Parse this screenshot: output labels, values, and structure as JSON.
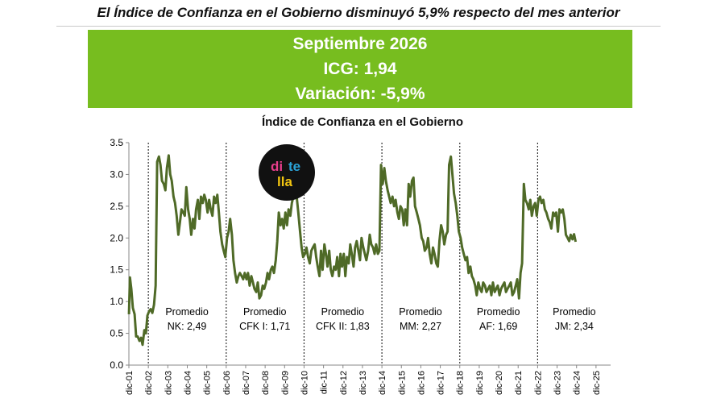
{
  "headline": "El Índice de Confianza en el Gobierno disminuyó 5,9% respecto del mes anterior",
  "banner": {
    "title": "Septiembre 2026",
    "icg": "ICG: 1,94",
    "variation": "Variación: -5,9%",
    "color": "#77bd1f"
  },
  "logo": {
    "part1": "di",
    "part2": "te",
    "part3": "lla"
  },
  "chart_data": {
    "type": "line",
    "title": "Índice de Confianza en el Gobierno",
    "xlabel": "",
    "ylabel": "",
    "ylim": [
      0,
      3.5
    ],
    "yticks": [
      "0.0",
      "0.5",
      "1.0",
      "1.5",
      "2.0",
      "2.5",
      "3.0",
      "3.5"
    ],
    "grid": false,
    "line_color": "#4f6a27",
    "x_labels": [
      "dic-01",
      "dic-02",
      "dic-03",
      "dic-04",
      "dic-05",
      "dic-06",
      "dic-07",
      "dic-08",
      "dic-09",
      "dic-10",
      "dic-11",
      "dic-12",
      "dic-13",
      "dic-14",
      "dic-15",
      "dic-16",
      "dic-17",
      "dic-18",
      "dic-19",
      "dic-20",
      "dic-21",
      "dic-22",
      "dic-23",
      "dic-24",
      "dic-25"
    ],
    "x_start": 2001.917,
    "x_end": 2026.667,
    "series": [
      {
        "points": [
          [
            2001.92,
            0.8
          ],
          [
            2001.97,
            1.38
          ],
          [
            2002.04,
            1.2
          ],
          [
            2002.12,
            0.9
          ],
          [
            2002.21,
            0.8
          ],
          [
            2002.29,
            0.45
          ],
          [
            2002.37,
            0.45
          ],
          [
            2002.46,
            0.38
          ],
          [
            2002.54,
            0.43
          ],
          [
            2002.62,
            0.32
          ],
          [
            2002.71,
            0.55
          ],
          [
            2002.79,
            0.5
          ],
          [
            2002.87,
            0.78
          ],
          [
            2002.96,
            0.85
          ],
          [
            2003.04,
            0.88
          ],
          [
            2003.12,
            0.82
          ],
          [
            2003.21,
            0.95
          ],
          [
            2003.29,
            1.25
          ],
          [
            2003.37,
            3.2
          ],
          [
            2003.46,
            3.28
          ],
          [
            2003.54,
            3.15
          ],
          [
            2003.62,
            2.9
          ],
          [
            2003.71,
            2.85
          ],
          [
            2003.79,
            2.75
          ],
          [
            2003.87,
            3.1
          ],
          [
            2003.96,
            3.3
          ],
          [
            2004.04,
            3.0
          ],
          [
            2004.12,
            2.9
          ],
          [
            2004.21,
            2.65
          ],
          [
            2004.29,
            2.55
          ],
          [
            2004.37,
            2.35
          ],
          [
            2004.46,
            2.05
          ],
          [
            2004.54,
            2.25
          ],
          [
            2004.62,
            2.45
          ],
          [
            2004.71,
            2.4
          ],
          [
            2004.79,
            2.35
          ],
          [
            2004.87,
            2.8
          ],
          [
            2004.96,
            2.45
          ],
          [
            2005.04,
            2.3
          ],
          [
            2005.12,
            2.05
          ],
          [
            2005.21,
            2.3
          ],
          [
            2005.29,
            2.15
          ],
          [
            2005.37,
            2.45
          ],
          [
            2005.46,
            2.6
          ],
          [
            2005.54,
            2.3
          ],
          [
            2005.62,
            2.65
          ],
          [
            2005.71,
            2.55
          ],
          [
            2005.79,
            2.68
          ],
          [
            2005.87,
            2.6
          ],
          [
            2005.96,
            2.4
          ],
          [
            2006.04,
            2.6
          ],
          [
            2006.12,
            2.45
          ],
          [
            2006.21,
            2.35
          ],
          [
            2006.29,
            2.65
          ],
          [
            2006.37,
            2.55
          ],
          [
            2006.46,
            2.68
          ],
          [
            2006.54,
            2.4
          ],
          [
            2006.62,
            2.1
          ],
          [
            2006.71,
            1.9
          ],
          [
            2006.79,
            1.8
          ],
          [
            2006.87,
            1.7
          ],
          [
            2006.96,
            2.0
          ],
          [
            2007.04,
            2.1
          ],
          [
            2007.12,
            2.3
          ],
          [
            2007.21,
            2.05
          ],
          [
            2007.29,
            1.65
          ],
          [
            2007.37,
            1.45
          ],
          [
            2007.46,
            1.3
          ],
          [
            2007.54,
            1.4
          ],
          [
            2007.62,
            1.45
          ],
          [
            2007.71,
            1.4
          ],
          [
            2007.79,
            1.35
          ],
          [
            2007.87,
            1.45
          ],
          [
            2007.96,
            1.35
          ],
          [
            2008.04,
            1.45
          ],
          [
            2008.12,
            1.25
          ],
          [
            2008.21,
            1.4
          ],
          [
            2008.29,
            1.3
          ],
          [
            2008.37,
            1.2
          ],
          [
            2008.46,
            1.15
          ],
          [
            2008.54,
            1.3
          ],
          [
            2008.62,
            1.05
          ],
          [
            2008.71,
            1.1
          ],
          [
            2008.79,
            1.25
          ],
          [
            2008.87,
            1.2
          ],
          [
            2008.96,
            1.3
          ],
          [
            2009.04,
            1.45
          ],
          [
            2009.12,
            1.35
          ],
          [
            2009.21,
            1.5
          ],
          [
            2009.29,
            1.55
          ],
          [
            2009.37,
            1.45
          ],
          [
            2009.46,
            1.65
          ],
          [
            2009.54,
            1.95
          ],
          [
            2009.62,
            2.4
          ],
          [
            2009.71,
            2.2
          ],
          [
            2009.79,
            2.3
          ],
          [
            2009.87,
            2.15
          ],
          [
            2009.96,
            2.4
          ],
          [
            2010.04,
            2.2
          ],
          [
            2010.12,
            2.45
          ],
          [
            2010.21,
            2.35
          ],
          [
            2010.29,
            2.55
          ],
          [
            2010.37,
            2.65
          ],
          [
            2010.46,
            2.75
          ],
          [
            2010.54,
            2.65
          ],
          [
            2010.62,
            2.4
          ],
          [
            2010.71,
            2.1
          ],
          [
            2010.79,
            1.85
          ],
          [
            2010.87,
            1.7
          ],
          [
            2010.96,
            1.75
          ],
          [
            2011.04,
            1.85
          ],
          [
            2011.12,
            1.7
          ],
          [
            2011.21,
            1.6
          ],
          [
            2011.29,
            1.8
          ],
          [
            2011.37,
            1.85
          ],
          [
            2011.46,
            1.9
          ],
          [
            2011.54,
            1.7
          ],
          [
            2011.62,
            1.55
          ],
          [
            2011.71,
            1.4
          ],
          [
            2011.79,
            1.8
          ],
          [
            2011.87,
            1.5
          ],
          [
            2011.96,
            1.9
          ],
          [
            2012.04,
            1.75
          ],
          [
            2012.12,
            1.55
          ],
          [
            2012.21,
            1.8
          ],
          [
            2012.29,
            1.5
          ],
          [
            2012.37,
            1.4
          ],
          [
            2012.46,
            1.55
          ],
          [
            2012.54,
            1.5
          ],
          [
            2012.62,
            1.7
          ],
          [
            2012.71,
            1.4
          ],
          [
            2012.79,
            1.75
          ],
          [
            2012.87,
            1.55
          ],
          [
            2012.96,
            1.75
          ],
          [
            2013.04,
            1.4
          ],
          [
            2013.12,
            1.7
          ],
          [
            2013.21,
            1.6
          ],
          [
            2013.29,
            1.9
          ],
          [
            2013.37,
            1.75
          ],
          [
            2013.46,
            1.55
          ],
          [
            2013.54,
            1.85
          ],
          [
            2013.62,
            1.95
          ],
          [
            2013.71,
            1.8
          ],
          [
            2013.79,
            1.65
          ],
          [
            2013.87,
            2.0
          ],
          [
            2013.96,
            1.85
          ],
          [
            2014.04,
            1.75
          ],
          [
            2014.12,
            1.65
          ],
          [
            2014.21,
            1.8
          ],
          [
            2014.29,
            2.05
          ],
          [
            2014.37,
            1.9
          ],
          [
            2014.46,
            1.85
          ],
          [
            2014.54,
            1.75
          ],
          [
            2014.62,
            1.9
          ],
          [
            2014.71,
            1.75
          ],
          [
            2014.79,
            1.8
          ],
          [
            2014.87,
            3.15
          ],
          [
            2014.96,
            2.85
          ],
          [
            2015.04,
            3.1
          ],
          [
            2015.12,
            2.9
          ],
          [
            2015.21,
            2.75
          ],
          [
            2015.29,
            2.65
          ],
          [
            2015.37,
            2.55
          ],
          [
            2015.46,
            2.65
          ],
          [
            2015.54,
            2.5
          ],
          [
            2015.62,
            2.6
          ],
          [
            2015.71,
            2.4
          ],
          [
            2015.79,
            2.3
          ],
          [
            2015.87,
            2.5
          ],
          [
            2015.96,
            2.45
          ],
          [
            2016.04,
            2.2
          ],
          [
            2016.12,
            2.45
          ],
          [
            2016.21,
            2.2
          ],
          [
            2016.29,
            2.85
          ],
          [
            2016.37,
            2.65
          ],
          [
            2016.46,
            2.9
          ],
          [
            2016.54,
            2.95
          ],
          [
            2016.62,
            2.5
          ],
          [
            2016.71,
            2.4
          ],
          [
            2016.79,
            2.3
          ],
          [
            2016.87,
            2.2
          ],
          [
            2016.96,
            2.0
          ],
          [
            2017.04,
            1.95
          ],
          [
            2017.12,
            1.8
          ],
          [
            2017.21,
            1.85
          ],
          [
            2017.29,
            2.0
          ],
          [
            2017.37,
            1.75
          ],
          [
            2017.46,
            1.6
          ],
          [
            2017.54,
            1.85
          ],
          [
            2017.62,
            1.75
          ],
          [
            2017.71,
            1.6
          ],
          [
            2017.79,
            1.55
          ],
          [
            2017.87,
            1.95
          ],
          [
            2017.96,
            2.2
          ],
          [
            2018.04,
            2.1
          ],
          [
            2018.12,
            1.9
          ],
          [
            2018.21,
            2.05
          ],
          [
            2018.29,
            2.1
          ],
          [
            2018.37,
            3.15
          ],
          [
            2018.46,
            3.28
          ],
          [
            2018.54,
            3.0
          ],
          [
            2018.62,
            2.7
          ],
          [
            2018.71,
            2.55
          ],
          [
            2018.79,
            2.35
          ],
          [
            2018.87,
            2.1
          ],
          [
            2018.96,
            2.0
          ],
          [
            2019.04,
            1.85
          ],
          [
            2019.12,
            1.75
          ],
          [
            2019.21,
            1.65
          ],
          [
            2019.29,
            1.7
          ],
          [
            2019.37,
            1.45
          ],
          [
            2019.46,
            1.55
          ],
          [
            2019.54,
            1.4
          ],
          [
            2019.62,
            1.35
          ],
          [
            2019.71,
            1.25
          ],
          [
            2019.79,
            1.1
          ],
          [
            2019.87,
            1.3
          ],
          [
            2019.96,
            1.2
          ],
          [
            2020.04,
            1.15
          ],
          [
            2020.12,
            1.3
          ],
          [
            2020.21,
            1.25
          ],
          [
            2020.29,
            1.15
          ],
          [
            2020.37,
            1.2
          ],
          [
            2020.46,
            1.25
          ],
          [
            2020.54,
            1.1
          ],
          [
            2020.62,
            1.3
          ],
          [
            2020.71,
            1.15
          ],
          [
            2020.79,
            1.2
          ],
          [
            2020.87,
            1.25
          ],
          [
            2020.96,
            1.1
          ],
          [
            2021.04,
            1.2
          ],
          [
            2021.12,
            1.25
          ],
          [
            2021.21,
            1.3
          ],
          [
            2021.29,
            1.15
          ],
          [
            2021.37,
            1.2
          ],
          [
            2021.46,
            1.25
          ],
          [
            2021.54,
            1.3
          ],
          [
            2021.62,
            1.1
          ],
          [
            2021.71,
            1.15
          ],
          [
            2021.79,
            1.25
          ],
          [
            2021.87,
            1.35
          ],
          [
            2021.96,
            1.05
          ],
          [
            2022.04,
            1.45
          ],
          [
            2022.12,
            1.6
          ],
          [
            2022.21,
            2.85
          ],
          [
            2022.29,
            2.6
          ],
          [
            2022.37,
            2.55
          ],
          [
            2022.46,
            2.45
          ],
          [
            2022.54,
            2.6
          ],
          [
            2022.62,
            2.35
          ],
          [
            2022.71,
            2.5
          ],
          [
            2022.79,
            2.55
          ],
          [
            2022.87,
            2.35
          ],
          [
            2022.96,
            2.6
          ],
          [
            2023.04,
            2.65
          ],
          [
            2023.12,
            2.55
          ],
          [
            2023.21,
            2.6
          ],
          [
            2023.29,
            2.45
          ],
          [
            2023.37,
            2.4
          ],
          [
            2023.46,
            2.3
          ],
          [
            2023.54,
            2.25
          ],
          [
            2023.62,
            2.15
          ],
          [
            2023.71,
            2.4
          ],
          [
            2023.79,
            2.35
          ],
          [
            2023.87,
            2.4
          ],
          [
            2023.96,
            2.1
          ],
          [
            2024.04,
            2.45
          ],
          [
            2024.12,
            2.4
          ],
          [
            2024.21,
            2.45
          ],
          [
            2024.29,
            2.3
          ],
          [
            2024.37,
            2.05
          ],
          [
            2024.46,
            2.0
          ],
          [
            2024.54,
            1.95
          ],
          [
            2024.62,
            2.05
          ],
          [
            2024.71,
            1.98
          ],
          [
            2024.79,
            2.06
          ],
          [
            2024.87,
            1.94
          ]
        ]
      }
    ],
    "dividers": [
      2002.917,
      2006.917,
      2010.917,
      2014.917,
      2018.917,
      2022.917
    ],
    "annotations": [
      {
        "line1": "Promedio",
        "line2": "NK: 2,49",
        "x": 2004.9
      },
      {
        "line1": "Promedio",
        "line2": "CFK I: 1,71",
        "x": 2008.9
      },
      {
        "line1": "Promedio",
        "line2": "CFK II: 1,83",
        "x": 2012.9
      },
      {
        "line1": "Promedio",
        "line2": "MM: 2,27",
        "x": 2016.9
      },
      {
        "line1": "Promedio",
        "line2": "AF: 1,69",
        "x": 2020.9
      },
      {
        "line1": "Promedio",
        "line2": "JM: 2,34",
        "x": 2024.8
      }
    ]
  }
}
